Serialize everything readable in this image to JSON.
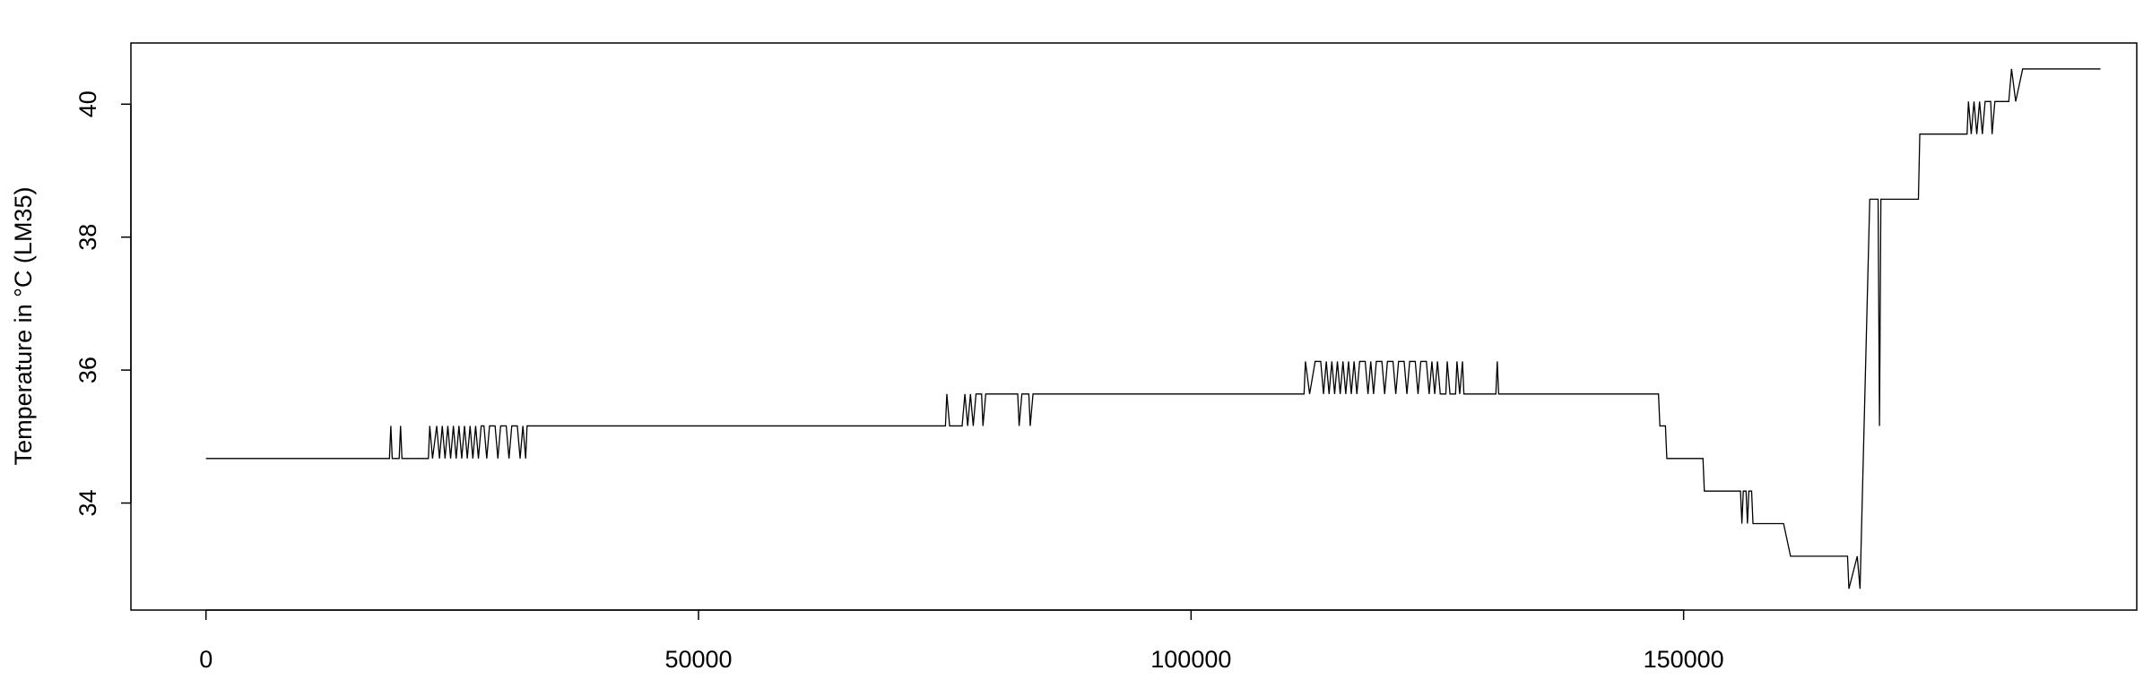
{
  "chart_data": {
    "type": "line",
    "y_label": "Temperature in °C (LM35)",
    "color": "#000000",
    "xlim": [
      -7620,
      196000
    ],
    "xticks": [
      0,
      50000,
      100000,
      150000
    ],
    "ylim": [
      32.39,
      40.92
    ],
    "yticks": [
      34,
      36,
      38,
      40
    ],
    "grid": false,
    "x": [
      0,
      18625,
      18766,
      18907,
      19613,
      19754,
      19895,
      22576,
      22717,
      22999,
      23423,
      23705,
      23987,
      24269,
      24551,
      24834,
      25116,
      25398,
      25680,
      25962,
      26245,
      26527,
      26809,
      27091,
      27373,
      27656,
      27938,
      28220,
      28502,
      28784,
      29349,
      29631,
      29913,
      30478,
      30760,
      31042,
      31606,
      31889,
      32171,
      32453,
      32594,
      75065,
      75206,
      75489,
      76758,
      77041,
      77323,
      77605,
      77887,
      78169,
      78734,
      78875,
      79157,
      82402,
      82544,
      82826,
      83531,
      83672,
      83955,
      111469,
      111610,
      112033,
      112598,
      113162,
      113444,
      113727,
      114009,
      114291,
      114573,
      114855,
      115138,
      115420,
      115702,
      115984,
      116266,
      116549,
      116831,
      117113,
      117677,
      117960,
      118242,
      118524,
      118806,
      119371,
      119653,
      119935,
      120499,
      120782,
      121064,
      121628,
      121910,
      122193,
      122757,
      123039,
      123321,
      123886,
      124168,
      124450,
      124732,
      125015,
      125297,
      125861,
      126002,
      126285,
      126849,
      126990,
      127272,
      127554,
      127696,
      130941,
      131082,
      131223,
      147450,
      147591,
      148155,
      148296,
      151965,
      152106,
      155774,
      155916,
      156057,
      156339,
      156480,
      156621,
      156903,
      157044,
      160149,
      160854,
      166639,
      166780,
      167627,
      167909,
      168897,
      169743,
      169884,
      170026,
      173835,
      173976,
      178774,
      178915,
      179197,
      179479,
      179761,
      180044,
      180326,
      180608,
      181172,
      181314,
      181596,
      183007,
      183289,
      183712,
      184418,
      192319
    ],
    "values": [
      34.67,
      34.67,
      35.16,
      34.67,
      34.67,
      35.16,
      34.67,
      34.67,
      35.16,
      34.67,
      35.16,
      34.67,
      35.16,
      34.67,
      35.16,
      34.67,
      35.16,
      34.67,
      35.16,
      34.67,
      35.16,
      34.67,
      35.16,
      34.67,
      35.16,
      34.67,
      35.16,
      35.16,
      34.67,
      35.16,
      35.16,
      34.67,
      35.16,
      35.16,
      34.67,
      35.16,
      35.16,
      34.67,
      35.16,
      34.67,
      35.16,
      35.16,
      35.64,
      35.16,
      35.16,
      35.64,
      35.16,
      35.64,
      35.16,
      35.64,
      35.64,
      35.16,
      35.64,
      35.64,
      35.16,
      35.64,
      35.64,
      35.16,
      35.64,
      35.64,
      36.13,
      35.64,
      36.13,
      36.13,
      35.64,
      36.13,
      35.64,
      36.13,
      35.64,
      36.13,
      35.64,
      36.13,
      35.64,
      36.13,
      35.64,
      36.13,
      35.64,
      36.13,
      36.13,
      35.64,
      36.13,
      35.64,
      36.13,
      36.13,
      35.64,
      36.13,
      36.13,
      35.64,
      36.13,
      36.13,
      35.64,
      36.13,
      36.13,
      35.64,
      36.13,
      36.13,
      35.64,
      36.13,
      35.64,
      36.13,
      35.64,
      35.64,
      36.13,
      35.64,
      35.64,
      36.13,
      35.64,
      36.13,
      35.64,
      35.64,
      36.13,
      35.64,
      35.64,
      35.16,
      35.16,
      34.67,
      34.67,
      34.18,
      34.18,
      33.69,
      34.18,
      34.18,
      33.69,
      34.18,
      34.18,
      33.69,
      33.69,
      33.2,
      33.2,
      32.71,
      33.2,
      32.71,
      38.57,
      38.57,
      35.16,
      38.57,
      38.57,
      39.55,
      39.55,
      40.04,
      39.55,
      40.04,
      39.55,
      40.04,
      39.55,
      40.04,
      40.04,
      39.55,
      40.04,
      40.04,
      40.53,
      40.04,
      40.53,
      40.53
    ]
  }
}
